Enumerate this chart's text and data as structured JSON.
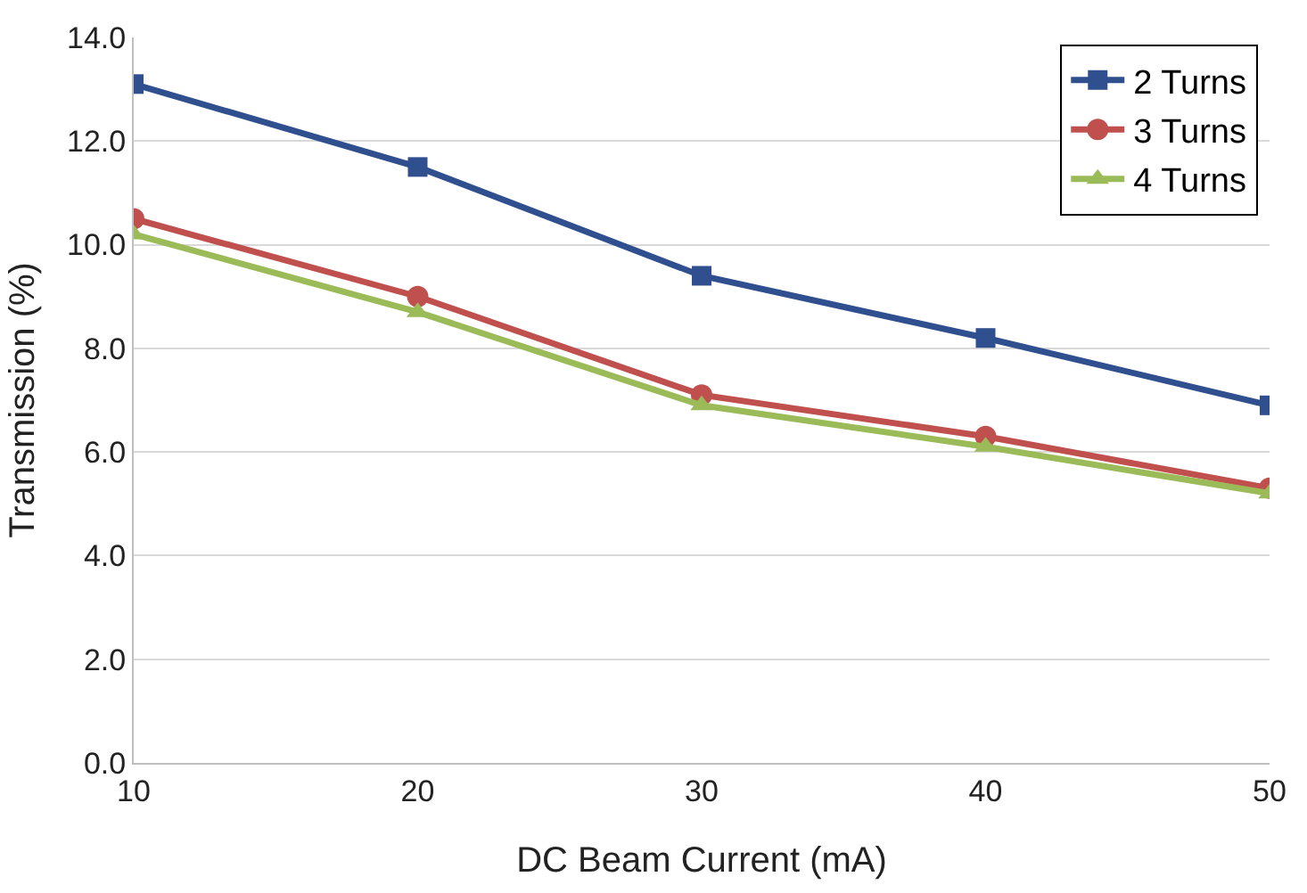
{
  "chart_data": {
    "type": "line",
    "xlabel": "DC Beam Current (mA)",
    "ylabel": "Transmission (%)",
    "x": [
      10,
      20,
      30,
      40,
      50
    ],
    "series": [
      {
        "name": "2 Turns",
        "color": "#2f4f8f",
        "marker": "square",
        "values": [
          13.1,
          11.5,
          9.4,
          8.2,
          6.9
        ]
      },
      {
        "name": "3 Turns",
        "color": "#c0504d",
        "marker": "circle",
        "values": [
          10.5,
          9.0,
          7.1,
          6.3,
          5.3
        ]
      },
      {
        "name": "4 Turns",
        "color": "#9bbb59",
        "marker": "triangle",
        "values": [
          10.2,
          8.7,
          6.9,
          6.1,
          5.2
        ]
      }
    ],
    "xlim": [
      10,
      50
    ],
    "xticks": [
      10,
      20,
      30,
      40,
      50
    ],
    "ylim": [
      0,
      14
    ],
    "yticks": [
      {
        "value": 0,
        "label": "0.0"
      },
      {
        "value": 2,
        "label": "2.0"
      },
      {
        "value": 4,
        "label": "4.0"
      },
      {
        "value": 6,
        "label": "6.0"
      },
      {
        "value": 8,
        "label": "8.0"
      },
      {
        "value": 10,
        "label": "10.0"
      },
      {
        "value": 12,
        "label": "12.0"
      },
      {
        "value": 14,
        "label": "14.0"
      }
    ],
    "grid": "y",
    "legend": "top right",
    "line_style": "solid"
  }
}
